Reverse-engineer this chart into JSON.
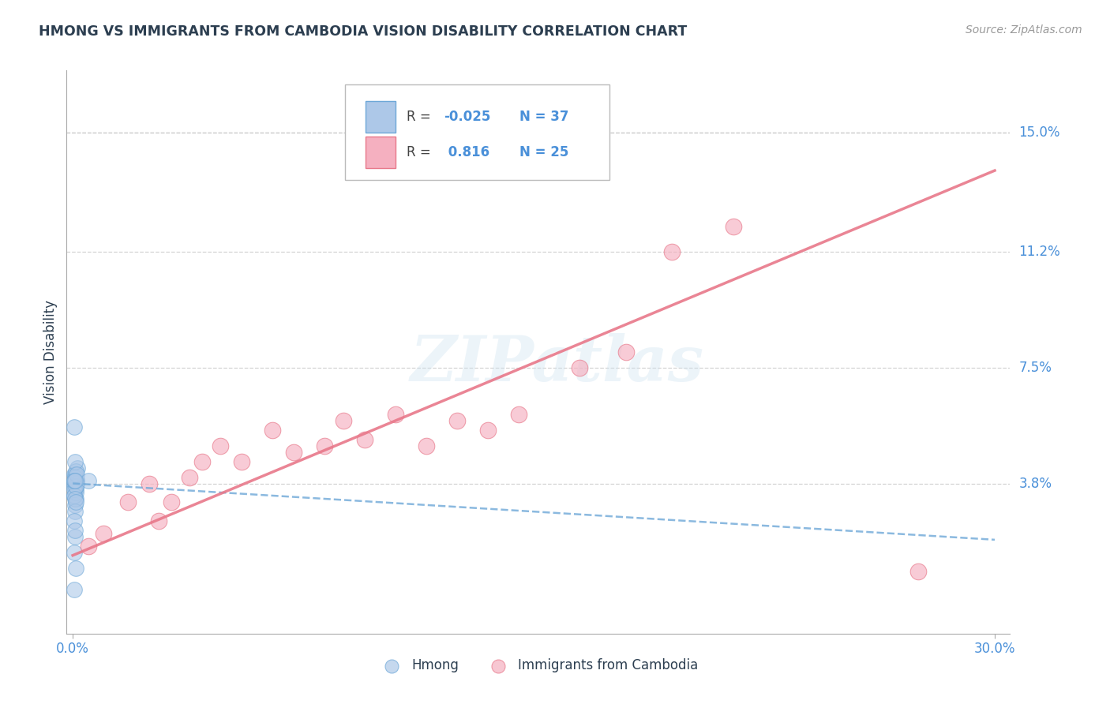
{
  "title": "HMONG VS IMMIGRANTS FROM CAMBODIA VISION DISABILITY CORRELATION CHART",
  "source": "Source: ZipAtlas.com",
  "ylabel": "Vision Disability",
  "xlim": [
    -0.002,
    0.305
  ],
  "ylim": [
    -0.01,
    0.17
  ],
  "xticks": [
    0.0,
    0.3
  ],
  "xticklabels": [
    "0.0%",
    "30.0%"
  ],
  "ytick_positions": [
    0.038,
    0.075,
    0.112,
    0.15
  ],
  "ytick_labels": [
    "3.8%",
    "7.5%",
    "11.2%",
    "15.0%"
  ],
  "grid_color": "#c8c8c8",
  "background_color": "#ffffff",
  "watermark_text": "ZIPatlas",
  "hmong_color": "#adc8e8",
  "hmong_edge_color": "#6ea8d8",
  "cambodia_color": "#f5b0c0",
  "cambodia_edge_color": "#e8788a",
  "hmong_trend_color": "#6ea8d8",
  "cambodia_trend_color": "#e8788a",
  "hmong_x": [
    0.0005,
    0.001,
    0.0008,
    0.0012,
    0.0006,
    0.001,
    0.0015,
    0.0008,
    0.0005,
    0.001,
    0.0012,
    0.0007,
    0.0005,
    0.001,
    0.0009,
    0.0013,
    0.0006,
    0.0008,
    0.001,
    0.0005,
    0.0007,
    0.0005,
    0.001,
    0.0008,
    0.0005,
    0.0012,
    0.0008,
    0.0005,
    0.001,
    0.0007,
    0.005,
    0.0008,
    0.0005,
    0.001,
    0.0005,
    0.0008,
    0.0005
  ],
  "hmong_y": [
    0.038,
    0.036,
    0.031,
    0.039,
    0.041,
    0.033,
    0.043,
    0.036,
    0.034,
    0.037,
    0.039,
    0.041,
    0.037,
    0.035,
    0.039,
    0.038,
    0.036,
    0.04,
    0.042,
    0.034,
    0.045,
    0.056,
    0.037,
    0.033,
    0.039,
    0.041,
    0.029,
    0.026,
    0.032,
    0.021,
    0.039,
    0.023,
    0.016,
    0.011,
    0.039,
    0.039,
    0.004
  ],
  "cambodia_x": [
    0.005,
    0.01,
    0.018,
    0.025,
    0.028,
    0.032,
    0.038,
    0.042,
    0.048,
    0.055,
    0.065,
    0.072,
    0.082,
    0.088,
    0.095,
    0.105,
    0.115,
    0.125,
    0.135,
    0.145,
    0.165,
    0.18,
    0.195,
    0.215,
    0.275
  ],
  "cambodia_y": [
    0.018,
    0.022,
    0.032,
    0.038,
    0.026,
    0.032,
    0.04,
    0.045,
    0.05,
    0.045,
    0.055,
    0.048,
    0.05,
    0.058,
    0.052,
    0.06,
    0.05,
    0.058,
    0.055,
    0.06,
    0.075,
    0.08,
    0.112,
    0.12,
    0.01
  ],
  "hmong_trend_x": [
    0.0,
    0.3
  ],
  "hmong_trend_y": [
    0.038,
    0.02
  ],
  "cambodia_trend_x": [
    0.0,
    0.3
  ],
  "cambodia_trend_y": [
    0.015,
    0.138
  ],
  "title_color": "#2c3e50",
  "axis_label_color": "#2c3e50",
  "tick_color": "#4a90d9",
  "legend_r_color_blue": "#4a90d9",
  "legend_r_color_pink": "#e8788a",
  "source_color": "#999999"
}
